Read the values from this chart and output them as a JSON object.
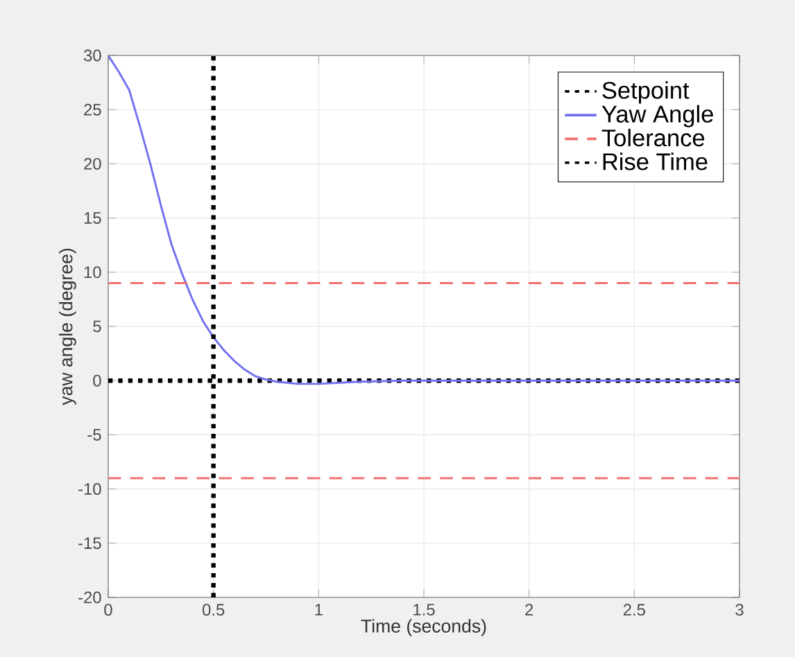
{
  "chart_data": {
    "type": "line",
    "xlabel": "Time (seconds)",
    "ylabel": "yaw angle (degree)",
    "xlim": [
      0,
      3
    ],
    "ylim": [
      -20,
      30
    ],
    "xticks": [
      0,
      0.5,
      1,
      1.5,
      2,
      2.5,
      3
    ],
    "yticks": [
      -20,
      -15,
      -10,
      -5,
      0,
      5,
      10,
      15,
      20,
      25,
      30
    ],
    "grid": true,
    "legend": "top right",
    "marker": "none",
    "series": [
      {
        "name": "Setpoint",
        "color": "#000000",
        "line_style": "dotted",
        "x": [
          0,
          3
        ],
        "values": [
          0,
          0
        ]
      },
      {
        "name": "Yaw Angle",
        "color": "#7070f0",
        "line_style": "solid",
        "x": [
          0,
          0.05,
          0.1,
          0.15,
          0.2,
          0.25,
          0.3,
          0.35,
          0.4,
          0.45,
          0.5,
          0.55,
          0.6,
          0.65,
          0.7,
          0.75,
          0.8,
          0.9,
          1.0,
          1.1,
          1.2,
          1.4,
          1.6,
          2.0,
          2.5,
          3.0
        ],
        "values": [
          30,
          28.5,
          26.8,
          23.5,
          20,
          16.2,
          12.6,
          9.9,
          7.5,
          5.5,
          4,
          2.8,
          1.8,
          1,
          0.4,
          0.1,
          -0.1,
          -0.3,
          -0.3,
          -0.2,
          -0.1,
          0,
          0,
          0,
          0,
          0
        ]
      },
      {
        "name": "Tolerance",
        "color": "#f07070",
        "line_style": "dashed",
        "x": [
          0,
          3
        ],
        "values": [
          9,
          9
        ]
      },
      {
        "color": "#f07070",
        "line_style": "dashed",
        "x": [
          0,
          3
        ],
        "values": [
          -9,
          -9
        ]
      },
      {
        "name": "Rise Time",
        "color": "#000000",
        "line_style": "dotted",
        "x": [
          0.5,
          0.5
        ],
        "values": [
          -20,
          30
        ]
      }
    ]
  }
}
